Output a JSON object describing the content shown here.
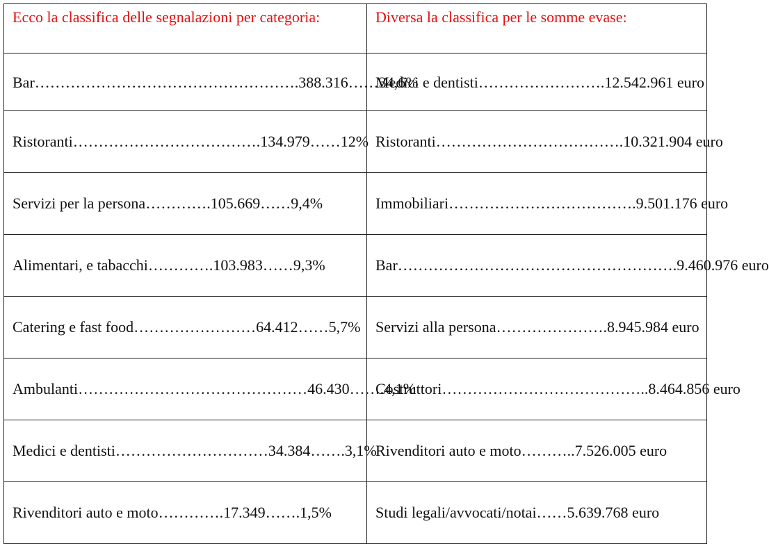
{
  "header": {
    "left": "Ecco la classifica delle segnalazioni per categoria:",
    "right": "Diversa la classifica per le somme evase:"
  },
  "colors": {
    "header_text": "#e4100f",
    "body_text": "#111111",
    "border": "#222222"
  },
  "rows": [
    {
      "left": "Bar…………………………………………….388.316……34,6%",
      "right": "Medici e dentisti…………………….12.542.961 euro"
    },
    {
      "left": "Ristoranti……………………………….134.979……12%",
      "right": "Ristoranti……………………………….10.321.904 euro"
    },
    {
      "left": "Servizi per la persona………….105.669……9,4%",
      "right": "Immobiliari……………………………….9.501.176 euro"
    },
    {
      "left": "Alimentari, e tabacchi………….103.983……9,3%",
      "right": "Bar……………………………………………….9.460.976 euro"
    },
    {
      "left": "Catering e fast food……………………64.412……5,7%",
      "right": "Servizi alla persona………………….8.945.984 euro"
    },
    {
      "left": "Ambulanti………………………………………46.430…….4,1%",
      "right": "Costruttori…………………………………..8.464.856 euro"
    },
    {
      "left": "Medici e dentisti…………………………34.384…….3,1%",
      "right": "Rivenditori auto e moto………..7.526.005 euro"
    },
    {
      "left": "Rivenditori auto e moto………….17.349…….1,5%",
      "right": "Studi legali/avvocati/notai……5.639.768 euro"
    }
  ]
}
